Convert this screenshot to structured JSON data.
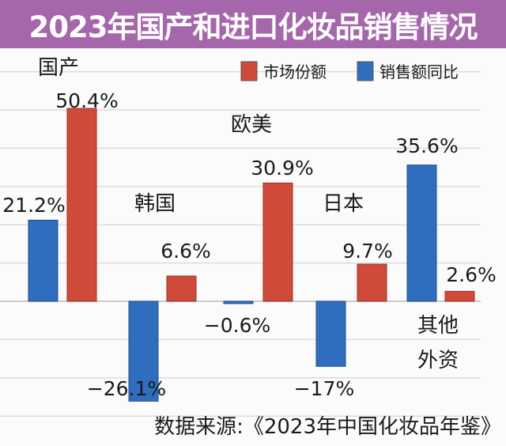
{
  "title": "2023年国产和进口化妆品销售情况",
  "source": "数据来源:《2023年中国化妆品年鉴》",
  "chart_data": {
    "type": "bar",
    "title": "2023年国产和进口化妆品销售情况",
    "categories": [
      "国产",
      "韩国",
      "欧美",
      "日本",
      "其他外资"
    ],
    "category_lines": [
      [
        "国产"
      ],
      [
        "韩国"
      ],
      [
        "欧美"
      ],
      [
        "日本"
      ],
      [
        "其他",
        "外资"
      ]
    ],
    "series": [
      {
        "name": "销售额同比",
        "color": "#2f6dbf",
        "values": [
          21.2,
          -26.1,
          -0.6,
          -17,
          35.6
        ],
        "labels": [
          "21.2%",
          "−26.1%",
          "−0.6%",
          "−17%",
          "35.6%"
        ]
      },
      {
        "name": "市场份额",
        "color": "#cf4a38",
        "values": [
          50.4,
          6.6,
          30.9,
          9.7,
          2.6
        ],
        "labels": [
          "50.4%",
          "6.6%",
          "30.9%",
          "9.7%",
          "2.6%"
        ]
      }
    ],
    "legend_order": [
      "市场份额",
      "销售额同比"
    ],
    "legend_position": "top-right",
    "ylim": [
      -30,
      60
    ],
    "grid": true,
    "unit": "%"
  }
}
